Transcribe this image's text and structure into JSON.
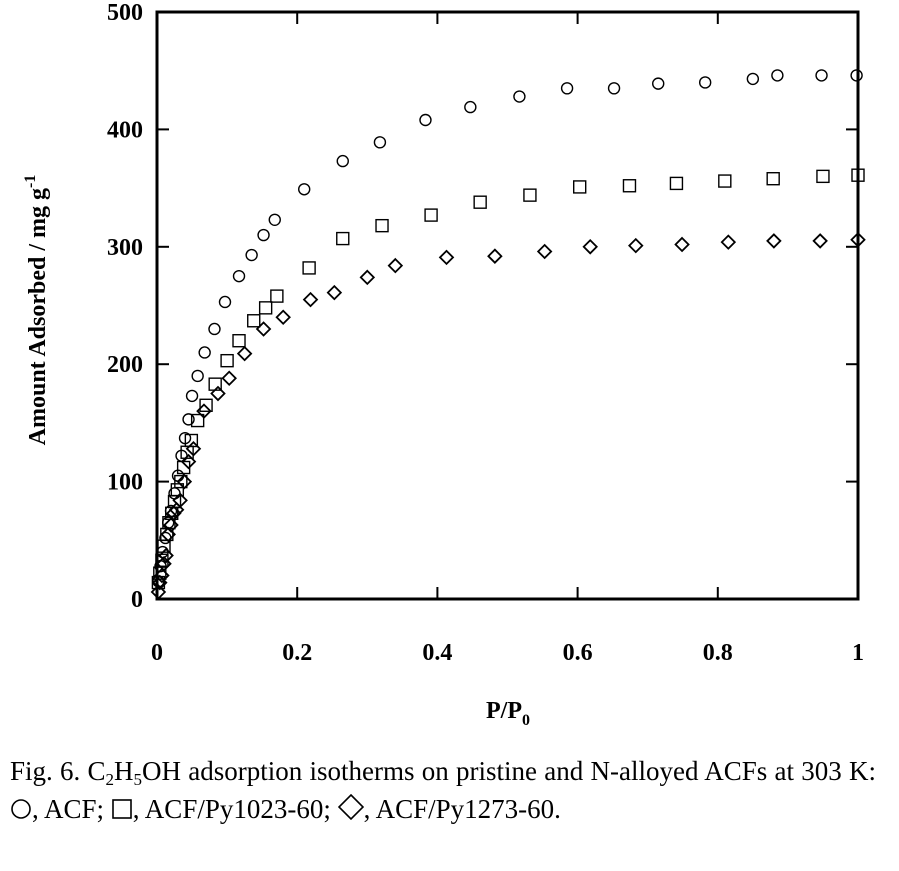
{
  "chart_data": {
    "type": "scatter",
    "xlabel": {
      "main": "P/P",
      "sub": "0"
    },
    "ylabel": {
      "main": "Amount Adsorbed / mg g",
      "sup": "-1"
    },
    "xlim": [
      0,
      1
    ],
    "ylim": [
      0,
      500
    ],
    "xticks": [
      0,
      0.2,
      0.4,
      0.6,
      0.8,
      1
    ],
    "xtick_labels": [
      "0",
      "0.2",
      "0.4",
      "0.6",
      "0.8",
      "1"
    ],
    "yticks": [
      0,
      100,
      200,
      300,
      400,
      500
    ],
    "ytick_labels": [
      "0",
      "100",
      "200",
      "300",
      "400",
      "500"
    ],
    "grid": false,
    "legend": "none",
    "series": [
      {
        "name": "ACF",
        "marker": "circle",
        "points": [
          [
            0.002,
            15
          ],
          [
            0.005,
            28
          ],
          [
            0.008,
            40
          ],
          [
            0.012,
            52
          ],
          [
            0.016,
            65
          ],
          [
            0.02,
            75
          ],
          [
            0.025,
            90
          ],
          [
            0.03,
            105
          ],
          [
            0.035,
            122
          ],
          [
            0.04,
            137
          ],
          [
            0.045,
            153
          ],
          [
            0.05,
            173
          ],
          [
            0.058,
            190
          ],
          [
            0.068,
            210
          ],
          [
            0.082,
            230
          ],
          [
            0.097,
            253
          ],
          [
            0.117,
            275
          ],
          [
            0.135,
            293
          ],
          [
            0.152,
            310
          ],
          [
            0.168,
            323
          ],
          [
            0.21,
            349
          ],
          [
            0.265,
            373
          ],
          [
            0.318,
            389
          ],
          [
            0.383,
            408
          ],
          [
            0.447,
            419
          ],
          [
            0.517,
            428
          ],
          [
            0.585,
            435
          ],
          [
            0.652,
            435
          ],
          [
            0.715,
            439
          ],
          [
            0.782,
            440
          ],
          [
            0.85,
            443
          ],
          [
            0.885,
            446
          ],
          [
            0.948,
            446
          ],
          [
            0.998,
            446
          ]
        ]
      },
      {
        "name": "ACF/Py1023-60",
        "marker": "square",
        "points": [
          [
            0.002,
            14
          ],
          [
            0.004,
            22
          ],
          [
            0.007,
            33
          ],
          [
            0.01,
            45
          ],
          [
            0.014,
            55
          ],
          [
            0.017,
            65
          ],
          [
            0.021,
            73
          ],
          [
            0.025,
            83
          ],
          [
            0.029,
            93
          ],
          [
            0.034,
            100
          ],
          [
            0.038,
            112
          ],
          [
            0.043,
            125
          ],
          [
            0.049,
            135
          ],
          [
            0.058,
            152
          ],
          [
            0.07,
            165
          ],
          [
            0.083,
            183
          ],
          [
            0.1,
            203
          ],
          [
            0.117,
            220
          ],
          [
            0.138,
            237
          ],
          [
            0.155,
            248
          ],
          [
            0.171,
            258
          ],
          [
            0.217,
            282
          ],
          [
            0.265,
            307
          ],
          [
            0.321,
            318
          ],
          [
            0.391,
            327
          ],
          [
            0.461,
            338
          ],
          [
            0.532,
            344
          ],
          [
            0.603,
            351
          ],
          [
            0.674,
            352
          ],
          [
            0.741,
            354
          ],
          [
            0.81,
            356
          ],
          [
            0.879,
            358
          ],
          [
            0.95,
            360
          ],
          [
            1.0,
            361
          ]
        ]
      },
      {
        "name": "ACF/Py1273-60",
        "marker": "diamond",
        "points": [
          [
            0.002,
            6
          ],
          [
            0.004,
            14
          ],
          [
            0.007,
            20
          ],
          [
            0.01,
            30
          ],
          [
            0.013,
            37
          ],
          [
            0.016,
            55
          ],
          [
            0.02,
            63
          ],
          [
            0.024,
            73
          ],
          [
            0.028,
            76
          ],
          [
            0.033,
            84
          ],
          [
            0.039,
            100
          ],
          [
            0.045,
            117
          ],
          [
            0.052,
            128
          ],
          [
            0.067,
            160
          ],
          [
            0.087,
            175
          ],
          [
            0.103,
            188
          ],
          [
            0.125,
            209
          ],
          [
            0.152,
            230
          ],
          [
            0.18,
            240
          ],
          [
            0.219,
            255
          ],
          [
            0.253,
            261
          ],
          [
            0.3,
            274
          ],
          [
            0.34,
            284
          ],
          [
            0.413,
            291
          ],
          [
            0.482,
            292
          ],
          [
            0.553,
            296
          ],
          [
            0.618,
            300
          ],
          [
            0.683,
            301
          ],
          [
            0.749,
            302
          ],
          [
            0.815,
            304
          ],
          [
            0.88,
            305
          ],
          [
            0.946,
            305
          ],
          [
            1.0,
            306
          ]
        ]
      }
    ]
  },
  "caption": {
    "fig_label": "Fig. 6. C",
    "sub_2a": "2",
    "h": "H",
    "sub_5": "5",
    "rest_1": "OH adsorption isotherms on pristine and N-alloyed ACFs at 303 K: ",
    "acf": ", ACF; ",
    "acf_py1023": ", ACF/Py1023-60; ",
    "acf_py1273": ", ACF/Py1273-60."
  }
}
